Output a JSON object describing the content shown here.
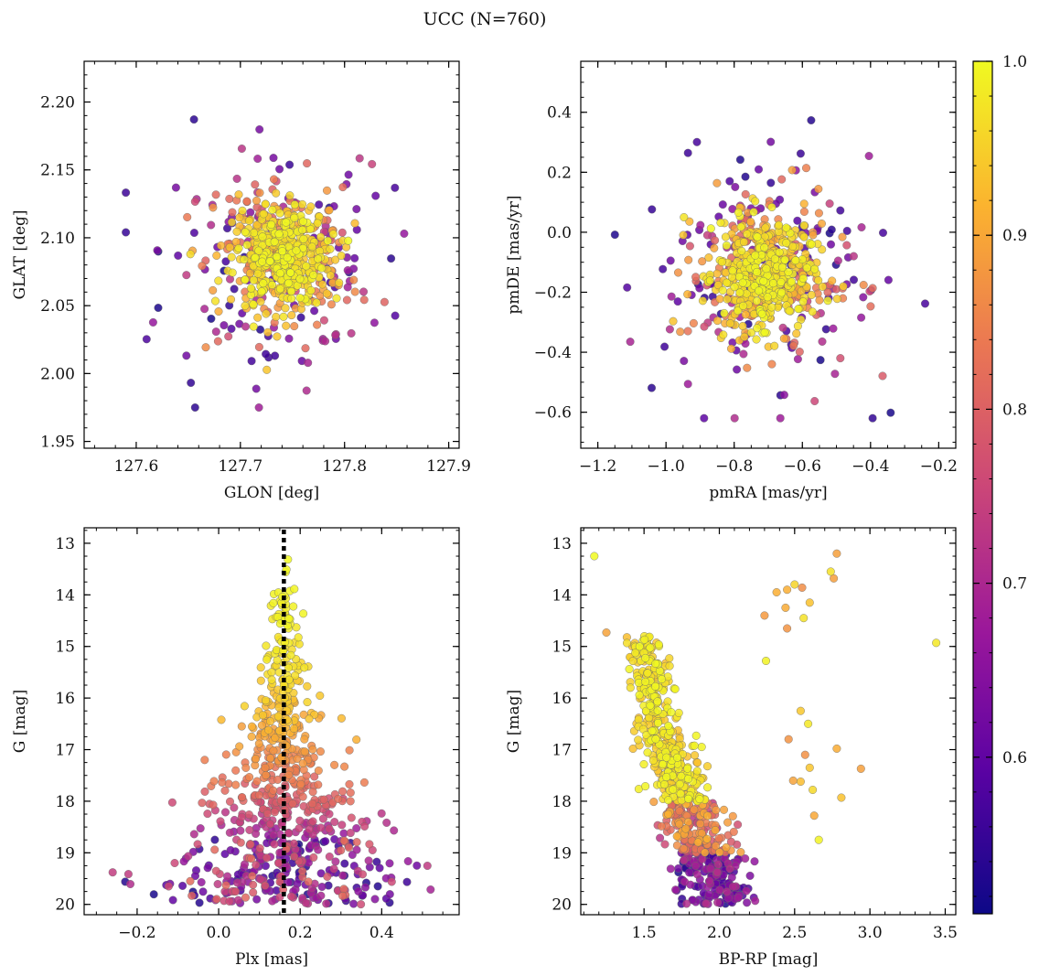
{
  "figure": {
    "title": "UCC (N=760)"
  },
  "colorbar": {
    "range": [
      0.51,
      1.0
    ],
    "ticks": [
      0.6,
      0.7,
      0.8,
      0.9,
      1.0
    ],
    "tick_labels": [
      "0.6",
      "0.7",
      "0.8",
      "0.9",
      "1.0"
    ],
    "colormap": "plasma",
    "stops": [
      "#0d0887",
      "#5b02a3",
      "#9a179b",
      "#cb4678",
      "#eb7852",
      "#fbb32f",
      "#f0f921"
    ]
  },
  "chart_data": [
    {
      "type": "scatter",
      "id": "glon-glat",
      "xlabel": "GLON [deg]",
      "ylabel": "GLAT [deg]",
      "xlim": [
        127.55,
        127.91
      ],
      "ylim": [
        1.945,
        2.23
      ],
      "xticks": [
        127.6,
        127.7,
        127.8,
        127.9
      ],
      "xtick_labels": [
        "127.6",
        "127.7",
        "127.8",
        "127.9"
      ],
      "yticks": [
        1.95,
        2.0,
        2.05,
        2.1,
        2.15,
        2.2
      ],
      "ytick_labels": [
        "1.95",
        "2.00",
        "2.05",
        "2.10",
        "2.15",
        "2.20"
      ],
      "x_center": 127.74,
      "y_center": 2.085,
      "core": {
        "x_sd": 0.02,
        "y_sd": 0.016
      },
      "halo": {
        "x_range": [
          127.59,
          127.87
        ],
        "y_range": [
          1.975,
          2.2
        ]
      },
      "points_approx": 760
    },
    {
      "type": "scatter",
      "id": "pm",
      "xlabel": "pmRA [mas/yr]",
      "ylabel": "pmDE [mas/yr]",
      "xlim": [
        -1.25,
        -0.15
      ],
      "ylim": [
        -0.72,
        0.57
      ],
      "xticks": [
        -1.2,
        -1.0,
        -0.8,
        -0.6,
        -0.4,
        -0.2
      ],
      "xtick_labels": [
        "−1.2",
        "−1.0",
        "−0.8",
        "−0.6",
        "−0.4",
        "−0.2"
      ],
      "yticks": [
        -0.6,
        -0.4,
        -0.2,
        0.0,
        0.2,
        0.4
      ],
      "ytick_labels": [
        "−0.6",
        "−0.4",
        "−0.2",
        "0.0",
        "0.2",
        "0.4"
      ],
      "x_center": -0.71,
      "y_center": -0.14,
      "core": {
        "x_sd": 0.07,
        "y_sd": 0.09
      },
      "halo": {
        "x_range": [
          -1.15,
          -0.24
        ],
        "y_range": [
          -0.62,
          0.46
        ]
      },
      "points_approx": 760
    },
    {
      "type": "scatter",
      "id": "plx-g",
      "xlabel": "Plx [mas]",
      "ylabel": "G [mag]",
      "xlim": [
        -0.33,
        0.59
      ],
      "ylim": [
        20.2,
        12.7
      ],
      "y_inverted": true,
      "xticks": [
        -0.2,
        0.0,
        0.2,
        0.4
      ],
      "xtick_labels": [
        "−0.2",
        "0.0",
        "0.2",
        "0.4"
      ],
      "yticks": [
        13,
        14,
        15,
        16,
        17,
        18,
        19,
        20
      ],
      "ytick_labels": [
        "13",
        "14",
        "15",
        "16",
        "17",
        "18",
        "19",
        "20"
      ],
      "vline": {
        "x": 0.16,
        "style": "dotted",
        "color": "#000000"
      },
      "points_approx": 760
    },
    {
      "type": "scatter",
      "id": "cmd",
      "xlabel": "BP-RP [mag]",
      "ylabel": "G [mag]",
      "xlim": [
        1.08,
        3.57
      ],
      "ylim": [
        20.2,
        12.7
      ],
      "y_inverted": true,
      "xticks": [
        1.5,
        2.0,
        2.5,
        3.0,
        3.5
      ],
      "xtick_labels": [
        "1.5",
        "2.0",
        "2.5",
        "3.0",
        "3.5"
      ],
      "yticks": [
        13,
        14,
        15,
        16,
        17,
        18,
        19,
        20
      ],
      "ytick_labels": [
        "13",
        "14",
        "15",
        "16",
        "17",
        "18",
        "19",
        "20"
      ],
      "sequence": {
        "G_range": [
          14.8,
          20.0
        ],
        "color_at_bright": 1.5,
        "color_at_faint": 2.02
      },
      "giants": [
        {
          "x": 2.78,
          "y": 13.2
        },
        {
          "x": 2.74,
          "y": 13.55
        },
        {
          "x": 2.76,
          "y": 13.68
        },
        {
          "x": 2.45,
          "y": 13.9
        },
        {
          "x": 2.5,
          "y": 13.8
        },
        {
          "x": 2.55,
          "y": 13.86
        },
        {
          "x": 2.38,
          "y": 13.95
        },
        {
          "x": 2.44,
          "y": 14.25
        },
        {
          "x": 2.6,
          "y": 14.15
        },
        {
          "x": 2.3,
          "y": 14.4
        },
        {
          "x": 2.45,
          "y": 14.65
        },
        {
          "x": 2.56,
          "y": 14.45
        },
        {
          "x": 1.17,
          "y": 13.25
        },
        {
          "x": 2.31,
          "y": 15.28
        },
        {
          "x": 3.44,
          "y": 14.93
        },
        {
          "x": 2.54,
          "y": 16.25
        },
        {
          "x": 2.59,
          "y": 16.5
        },
        {
          "x": 2.46,
          "y": 16.8
        },
        {
          "x": 2.78,
          "y": 16.98
        },
        {
          "x": 2.57,
          "y": 17.1
        },
        {
          "x": 2.6,
          "y": 17.35
        },
        {
          "x": 2.54,
          "y": 17.62
        },
        {
          "x": 2.49,
          "y": 17.6
        },
        {
          "x": 2.62,
          "y": 17.78
        },
        {
          "x": 2.81,
          "y": 17.93
        },
        {
          "x": 2.63,
          "y": 18.28
        },
        {
          "x": 2.94,
          "y": 17.37
        },
        {
          "x": 2.66,
          "y": 18.75
        },
        {
          "x": 1.25,
          "y": 14.73
        }
      ],
      "points_approx": 760
    }
  ]
}
